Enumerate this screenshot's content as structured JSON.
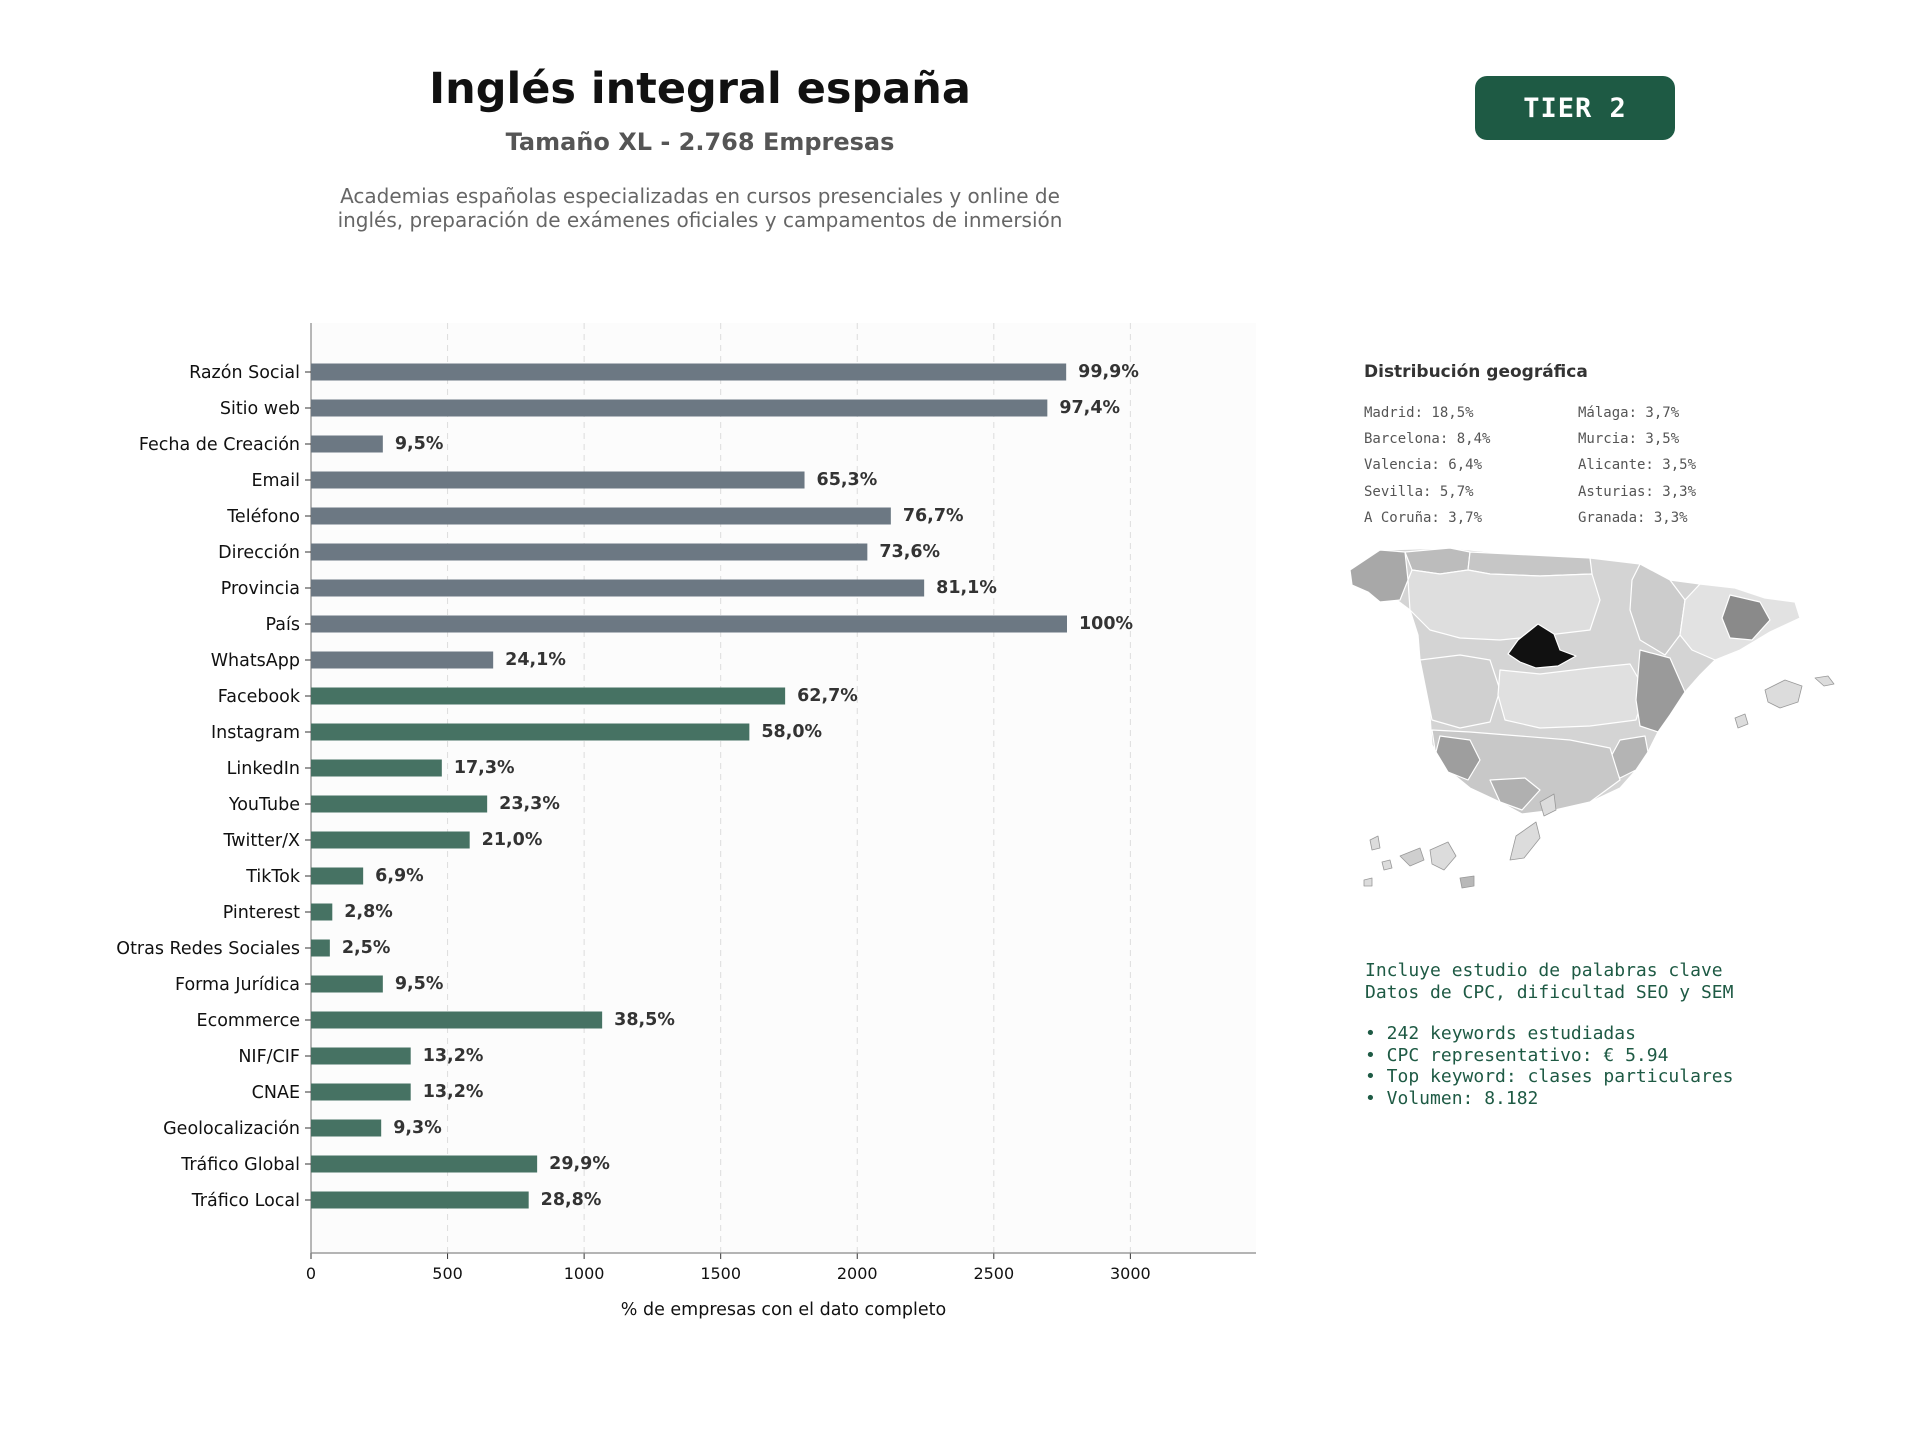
{
  "header": {
    "title": "Inglés integral españa",
    "subtitle": "Tamaño XL - 2.768 Empresas",
    "description_line1": "Academias españolas especializadas en cursos presenciales y online de",
    "description_line2": "inglés, preparación de exámenes oficiales y campamentos de inmersión",
    "tier": "TIER 2"
  },
  "chart_data": {
    "type": "bar",
    "orientation": "horizontal",
    "title": "",
    "xlabel": "% de empresas con el dato completo",
    "ylabel": "",
    "xlim": [
      0,
      3460
    ],
    "xticks": [
      0,
      500,
      1000,
      1500,
      2000,
      2500,
      3000
    ],
    "total_companies": 2768,
    "grid": "vertical dashed",
    "categories": [
      "Razón Social",
      "Sitio web",
      "Fecha de Creación",
      "Email",
      "Teléfono",
      "Dirección",
      "Provincia",
      "País",
      "WhatsApp",
      "Facebook",
      "Instagram",
      "LinkedIn",
      "YouTube",
      "Twitter/X",
      "TikTok",
      "Pinterest",
      "Otras Redes Sociales",
      "Forma Jurídica",
      "Ecommerce",
      "NIF/CIF",
      "CNAE",
      "Geolocalización",
      "Tráfico Global",
      "Tráfico Local"
    ],
    "values": [
      2765,
      2696,
      263,
      1807,
      2123,
      2037,
      2245,
      2768,
      667,
      1736,
      1605,
      479,
      645,
      581,
      191,
      78,
      69,
      263,
      1066,
      365,
      365,
      257,
      828,
      797
    ],
    "labels": [
      "99,9%",
      "97,4%",
      "9,5%",
      "65,3%",
      "76,7%",
      "73,6%",
      "81,1%",
      "100%",
      "24,1%",
      "62,7%",
      "58,0%",
      "17,3%",
      "23,3%",
      "21,0%",
      "6,9%",
      "2,8%",
      "2,5%",
      "9,5%",
      "38,5%",
      "13,2%",
      "13,2%",
      "9,3%",
      "29,9%",
      "28,8%"
    ],
    "bar_colors": [
      "#6c7883",
      "#6c7883",
      "#6c7883",
      "#6c7883",
      "#6c7883",
      "#6c7883",
      "#6c7883",
      "#6c7883",
      "#6c7883",
      "#467263",
      "#467263",
      "#467263",
      "#467263",
      "#467263",
      "#467263",
      "#467263",
      "#467263",
      "#467263",
      "#467263",
      "#467263",
      "#467263",
      "#467263",
      "#467263",
      "#467263"
    ]
  },
  "geo": {
    "title": "Distribución geográfica",
    "left": [
      "Madrid: 18,5%",
      "Barcelona: 8,4%",
      "Valencia: 6,4%",
      "Sevilla: 5,7%",
      "A Coruña: 3,7%"
    ],
    "right": [
      "Málaga: 3,7%",
      "Murcia: 3,5%",
      "Alicante: 3,5%",
      "Asturias: 3,3%",
      "Granada: 3,3%"
    ]
  },
  "keywords": {
    "line1": "Incluye estudio de palabras clave",
    "line2": "Datos de CPC, dificultad SEO y SEM",
    "bullets": [
      "• 242 keywords estudiadas",
      "• CPC representativo: € 5.94",
      "• Top keyword: clases particulares",
      "• Volumen: 8.182"
    ]
  },
  "colors": {
    "accent": "#1e5a44",
    "bar_contact": "#6c7883",
    "bar_digital": "#467263",
    "map_madrid": "#111111",
    "map_high": "#8a8a8a",
    "map_mid": "#b8b8b8",
    "map_low": "#dcdcdc"
  }
}
